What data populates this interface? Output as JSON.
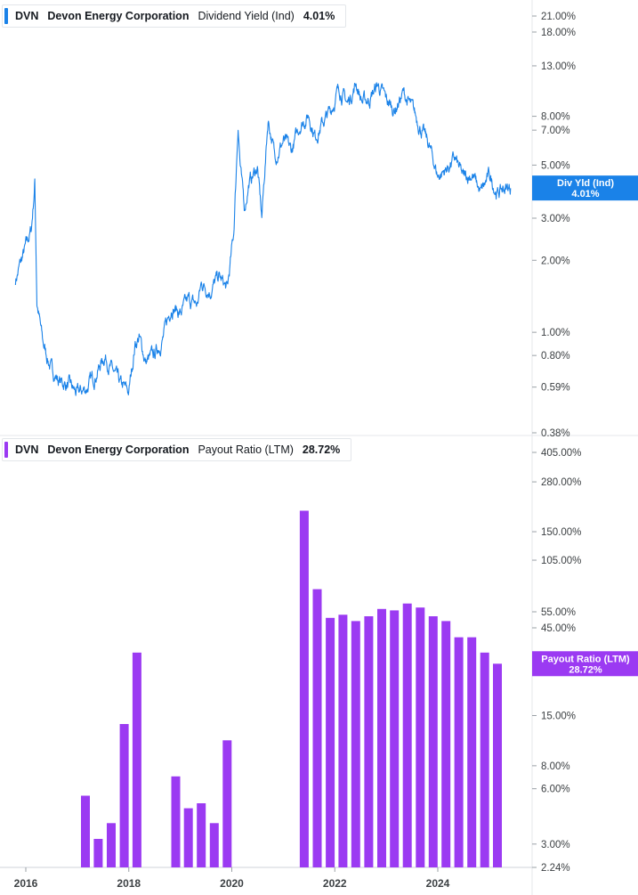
{
  "chart_data": [
    {
      "type": "line",
      "legend": {
        "ticker": "DVN",
        "company": "Devon Energy Corporation",
        "metric": "Dividend Yield (Ind)",
        "value": "4.01%"
      },
      "color": "#1a82e8",
      "scale": "log",
      "yticks": [
        "21.00%",
        "18.00%",
        "13.00%",
        "8.00%",
        "7.00%",
        "5.00%",
        "3.00%",
        "2.00%",
        "1.00%",
        "0.80%",
        "0.59%",
        "0.38%"
      ],
      "ytick_values": [
        21,
        18,
        13,
        8,
        7,
        5,
        3,
        2,
        1,
        0.8,
        0.59,
        0.38
      ],
      "marker": {
        "label1": "Div Yld (Ind)",
        "label2": "4.01%",
        "value": 4.01
      },
      "x": [
        "2015-10-20",
        "2015-11-20",
        "2016-01-05",
        "2016-02-10",
        "2016-03-01",
        "2016-03-05",
        "2016-03-20",
        "2016-05-01",
        "2016-07-01",
        "2016-09-01",
        "2016-11-01",
        "2017-01-01",
        "2017-03-01",
        "2017-05-01",
        "2017-07-15",
        "2017-09-01",
        "2017-11-01",
        "2018-01-01",
        "2018-02-15",
        "2018-03-15",
        "2018-05-01",
        "2018-07-01",
        "2018-09-01",
        "2018-11-01",
        "2019-01-01",
        "2019-03-01",
        "2019-05-01",
        "2019-06-01",
        "2019-08-01",
        "2019-10-01",
        "2019-12-01",
        "2020-01-15",
        "2020-02-15",
        "2020-03-01",
        "2020-03-15",
        "2020-04-01",
        "2020-05-01",
        "2020-07-01",
        "2020-08-01",
        "2020-09-15",
        "2020-10-15",
        "2020-11-01",
        "2021-01-01",
        "2021-03-01",
        "2021-05-01",
        "2021-07-01",
        "2021-08-15",
        "2021-10-01",
        "2021-12-01",
        "2022-02-01",
        "2022-04-01",
        "2022-06-01",
        "2022-07-15",
        "2022-09-01",
        "2022-11-01",
        "2023-01-01",
        "2023-03-01",
        "2023-05-01",
        "2023-07-01",
        "2023-09-01",
        "2023-11-01",
        "2024-01-01",
        "2024-03-01",
        "2024-05-01",
        "2024-07-01",
        "2024-09-01",
        "2024-11-01",
        "2025-01-01",
        "2025-03-01",
        "2025-04-15",
        "2025-06-01"
      ],
      "values": [
        1.65,
        1.9,
        2.3,
        2.7,
        3.9,
        4.3,
        1.35,
        0.9,
        0.7,
        0.62,
        0.6,
        0.55,
        0.58,
        0.65,
        0.8,
        0.7,
        0.6,
        0.56,
        0.9,
        0.95,
        0.75,
        0.8,
        0.95,
        1.3,
        1.2,
        1.35,
        1.3,
        1.6,
        1.5,
        1.7,
        1.5,
        2.6,
        7.5,
        5.0,
        4.0,
        3.3,
        4.2,
        4.9,
        3.0,
        7.8,
        6.3,
        5.4,
        6.3,
        5.7,
        7.4,
        8.1,
        6.6,
        7.4,
        8.4,
        10.5,
        9.0,
        11.0,
        9.2,
        9.4,
        10.8,
        9.3,
        8.5,
        10.0,
        8.6,
        7.2,
        6.0,
        4.5,
        4.8,
        5.3,
        4.4,
        4.6,
        3.8,
        4.5,
        3.8,
        4.0,
        4.0
      ]
    },
    {
      "type": "bar",
      "legend": {
        "ticker": "DVN",
        "company": "Devon Energy Corporation",
        "metric": "Payout Ratio (LTM)",
        "value": "28.72%"
      },
      "color": "#9b3af2",
      "scale": "log",
      "yticks": [
        "405.00%",
        "280.00%",
        "150.00%",
        "105.00%",
        "55.00%",
        "45.00%",
        "15.00%",
        "8.00%",
        "6.00%",
        "3.00%",
        "2.24%"
      ],
      "ytick_values": [
        405,
        280,
        150,
        105,
        55,
        45,
        15,
        8,
        6,
        3,
        2.24
      ],
      "marker": {
        "label1": "Payout Ratio (LTM)",
        "label2": "28.72%",
        "value": 28.72
      },
      "x": [
        "2017-03-31",
        "2017-06-30",
        "2017-09-30",
        "2017-12-31",
        "2018-03-31",
        "2018-12-31",
        "2019-03-31",
        "2019-06-30",
        "2019-09-30",
        "2019-12-31",
        "2021-06-30",
        "2021-09-30",
        "2021-12-31",
        "2022-03-31",
        "2022-06-30",
        "2022-09-30",
        "2022-12-31",
        "2023-03-31",
        "2023-06-30",
        "2023-09-30",
        "2023-12-31",
        "2024-03-31",
        "2024-06-30",
        "2024-09-30",
        "2024-12-31",
        "2025-03-31"
      ],
      "values": [
        5.5,
        3.2,
        3.9,
        13.5,
        33,
        7.0,
        4.7,
        5.0,
        3.9,
        11.0,
        195,
        73,
        51,
        53,
        49,
        52,
        57,
        56,
        61,
        58,
        52,
        49,
        40,
        40,
        33,
        28.72
      ]
    }
  ],
  "xaxis": {
    "labels": [
      "2016",
      "2018",
      "2020",
      "2022",
      "2024"
    ],
    "years": [
      2016,
      2018,
      2020,
      2022,
      2024
    ]
  }
}
